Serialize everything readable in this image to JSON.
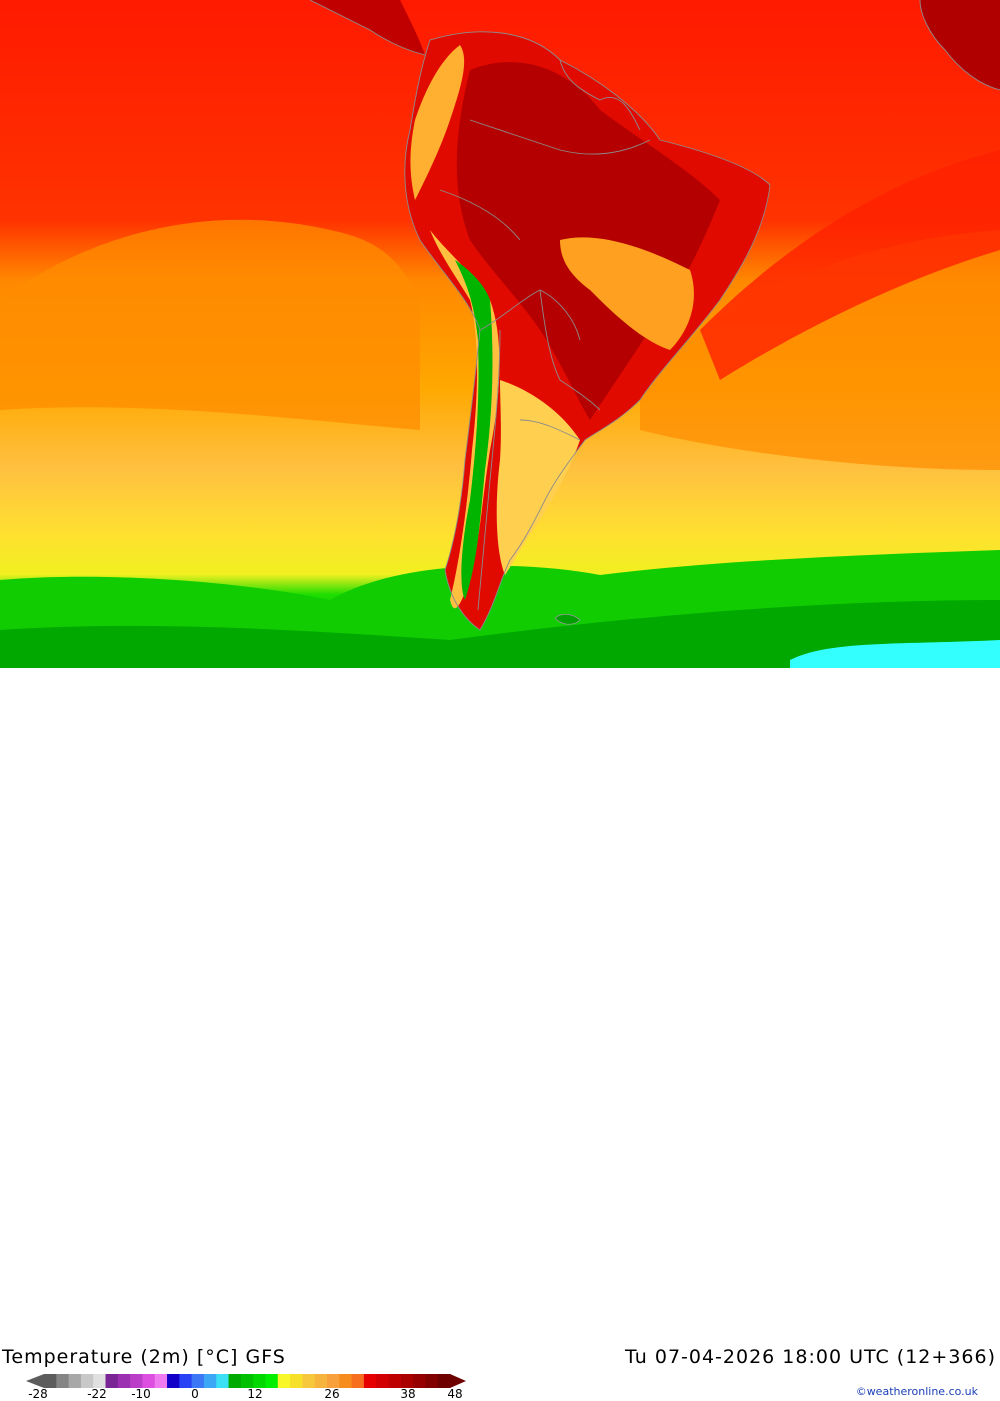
{
  "map": {
    "title": "Temperature (2m) [°C] GFS",
    "timestamp": "Tu 07-04-2026 18:00 UTC (12+366)",
    "credit": "©weatheronline.co.uk",
    "colors": {
      "ocean_ice": "#33ffff",
      "cold_green": "#00a000",
      "green": "#00c800",
      "yellow": "#ffee22",
      "light_orange": "#ffc040",
      "orange": "#ff9a00",
      "red": "#ff1a00",
      "dark_red": "#b80000",
      "border": "#9a9a9a"
    },
    "colorbar": {
      "tick_labels": [
        "-28",
        "-22",
        "-10",
        "0",
        "12",
        "26",
        "38",
        "48"
      ],
      "swatches": [
        "#5c5c5c",
        "#858585",
        "#a8a8a8",
        "#c8c8c8",
        "#e0e0e0",
        "#7a2596",
        "#9b30b0",
        "#bb3ec8",
        "#dd4fe0",
        "#f07af0",
        "#1200c8",
        "#2a42f5",
        "#3c78f5",
        "#3ca8f5",
        "#3ce0f5",
        "#00aa00",
        "#00c000",
        "#00d800",
        "#00ee00",
        "#f7f72a",
        "#f7e02a",
        "#f7c83c",
        "#f7b43c",
        "#f7a03c",
        "#f78c1e",
        "#f76e1e",
        "#e60000",
        "#d20000",
        "#be0000",
        "#aa0000",
        "#960000",
        "#820000",
        "#6e0000"
      ]
    }
  }
}
